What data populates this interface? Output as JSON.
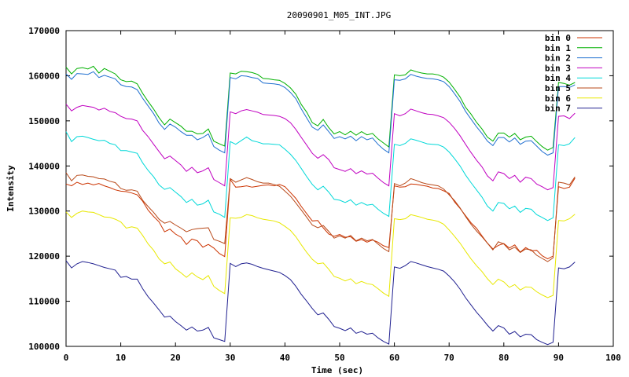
{
  "chart_data": {
    "type": "line",
    "title": "20090901_M05_INT.JPG",
    "xlabel": "Time (sec)",
    "ylabel": "Intensity",
    "xlim": [
      0,
      100
    ],
    "ylim": [
      100000,
      170000
    ],
    "xticks": [
      0,
      10,
      20,
      30,
      40,
      50,
      60,
      70,
      80,
      90,
      100
    ],
    "yticks": [
      100000,
      110000,
      120000,
      130000,
      140000,
      150000,
      160000,
      170000
    ],
    "grid": false,
    "legend_position": "top-right",
    "x": [
      0,
      1,
      2,
      3,
      4,
      5,
      6,
      7,
      8,
      9,
      10,
      11,
      12,
      13,
      14,
      15,
      16,
      17,
      18,
      19,
      20,
      21,
      22,
      23,
      24,
      25,
      26,
      27,
      28,
      29,
      30,
      31,
      32,
      33,
      34,
      35,
      36,
      37,
      38,
      39,
      40,
      41,
      42,
      43,
      44,
      45,
      46,
      47,
      48,
      49,
      50,
      51,
      52,
      53,
      54,
      55,
      56,
      57,
      58,
      59,
      60,
      61,
      62,
      63,
      64,
      65,
      66,
      67,
      68,
      69,
      70,
      71,
      72,
      73,
      74,
      75,
      76,
      77,
      78,
      79,
      80,
      81,
      82,
      83,
      84,
      85,
      86,
      87,
      88,
      89,
      90,
      91,
      92,
      93
    ],
    "series": [
      {
        "name": "bin 0",
        "color": "#cc3300",
        "values": [
          136000,
          135600,
          136400,
          135900,
          136200,
          135800,
          136100,
          135600,
          135200,
          134700,
          134400,
          134300,
          134000,
          133600,
          132200,
          130200,
          128800,
          127600,
          125400,
          126000,
          124900,
          124200,
          122600,
          123800,
          123400,
          122000,
          122600,
          121800,
          120600,
          119900,
          137000,
          135300,
          135400,
          135600,
          135300,
          135500,
          135700,
          135800,
          135600,
          135900,
          135400,
          134100,
          132800,
          131000,
          129400,
          127800,
          127900,
          126300,
          124900,
          124400,
          124800,
          124200,
          124300,
          123300,
          123700,
          123100,
          123600,
          123100,
          122300,
          121900,
          135600,
          135300,
          135400,
          136000,
          135900,
          135700,
          135500,
          135100,
          135000,
          134500,
          133900,
          132000,
          130600,
          129000,
          127400,
          126200,
          124500,
          122900,
          121600,
          122400,
          122800,
          121800,
          122500,
          120900,
          121900,
          121200,
          121300,
          120100,
          119400,
          120000,
          135400,
          135000,
          135300,
          137300
        ]
      },
      {
        "name": "bin 1",
        "color": "#00b000",
        "values": [
          161900,
          160400,
          161600,
          161800,
          161500,
          162100,
          160600,
          161600,
          161000,
          160400,
          159100,
          158700,
          158800,
          158200,
          156100,
          154300,
          152600,
          150700,
          149100,
          150400,
          149600,
          148800,
          147700,
          147700,
          147100,
          147200,
          148200,
          145500,
          144900,
          144400,
          160600,
          160400,
          161000,
          160900,
          160700,
          160300,
          159400,
          159300,
          159100,
          159000,
          158300,
          157300,
          155900,
          153600,
          151900,
          149600,
          148900,
          150300,
          148500,
          147100,
          147600,
          146900,
          147700,
          146800,
          147600,
          146900,
          147200,
          146000,
          145100,
          144200,
          160200,
          160000,
          160200,
          161300,
          160900,
          160600,
          160400,
          160400,
          160200,
          159700,
          158600,
          157000,
          155300,
          153000,
          151500,
          149700,
          148200,
          146400,
          145500,
          147300,
          147300,
          146400,
          147200,
          145800,
          146400,
          146600,
          145400,
          144300,
          143500,
          144100,
          158500,
          158300,
          157900,
          158500
        ]
      },
      {
        "name": "bin 2",
        "color": "#1f6fd0",
        "values": [
          160400,
          159200,
          160500,
          160400,
          160300,
          160900,
          159600,
          160100,
          159700,
          159300,
          158000,
          157600,
          157500,
          156900,
          155000,
          153300,
          151600,
          149500,
          148100,
          149300,
          148600,
          147600,
          146800,
          146800,
          145800,
          146300,
          147100,
          144300,
          143500,
          142900,
          159600,
          159300,
          160000,
          159900,
          159600,
          159400,
          158400,
          158300,
          158200,
          158000,
          157400,
          156300,
          154900,
          152600,
          150600,
          148600,
          147900,
          149100,
          147600,
          146100,
          146500,
          146000,
          146600,
          145600,
          146500,
          145800,
          146200,
          144800,
          143700,
          142900,
          159100,
          159000,
          159300,
          160300,
          159900,
          159600,
          159400,
          159300,
          159100,
          158700,
          157600,
          156000,
          154300,
          152100,
          150400,
          148700,
          147200,
          145500,
          144500,
          146300,
          146300,
          145300,
          146200,
          144800,
          145500,
          145600,
          144400,
          143200,
          142400,
          142900,
          157600,
          157600,
          157400,
          158000
        ]
      },
      {
        "name": "bin 3",
        "color": "#c000c0",
        "values": [
          153700,
          152200,
          153000,
          153400,
          153200,
          153000,
          152400,
          152800,
          152100,
          151800,
          151000,
          150500,
          150400,
          150000,
          147900,
          146500,
          144800,
          143200,
          141600,
          142200,
          141200,
          140200,
          138800,
          139700,
          138500,
          138900,
          139600,
          137000,
          136300,
          135600,
          152000,
          151600,
          152200,
          152500,
          152200,
          151900,
          151400,
          151300,
          151200,
          151000,
          150500,
          149600,
          148100,
          146300,
          144600,
          142800,
          141700,
          142500,
          141400,
          139600,
          139200,
          138800,
          139400,
          138300,
          138900,
          138200,
          138400,
          137300,
          136300,
          135600,
          151600,
          151100,
          151600,
          152600,
          152200,
          151800,
          151500,
          151400,
          151100,
          150700,
          149700,
          148300,
          146700,
          144800,
          143000,
          141300,
          139800,
          137800,
          136700,
          138700,
          138300,
          137200,
          137900,
          136400,
          137500,
          137200,
          136000,
          135400,
          134700,
          135200,
          151000,
          151100,
          150500,
          151700
        ]
      },
      {
        "name": "bin 4",
        "color": "#00d8d8",
        "values": [
          147600,
          145400,
          146500,
          146600,
          146300,
          145900,
          145600,
          145700,
          145000,
          144700,
          143400,
          143400,
          143100,
          142800,
          140700,
          139000,
          137600,
          135800,
          134800,
          135200,
          134200,
          133200,
          131900,
          132600,
          131300,
          131600,
          132400,
          129800,
          129300,
          128600,
          145400,
          144800,
          145600,
          146400,
          145600,
          145300,
          144900,
          144900,
          144800,
          144700,
          143700,
          142600,
          141200,
          139400,
          137600,
          135900,
          134700,
          135500,
          134200,
          132600,
          132400,
          131900,
          132500,
          131300,
          131900,
          131300,
          131500,
          130400,
          129500,
          128800,
          144800,
          144500,
          145000,
          146000,
          145700,
          145300,
          144900,
          144800,
          144700,
          144200,
          143100,
          141600,
          140000,
          138000,
          136300,
          134700,
          133100,
          131100,
          130000,
          131900,
          131700,
          130500,
          131100,
          129700,
          130600,
          130400,
          129200,
          128600,
          127900,
          128500,
          144700,
          144500,
          144900,
          146300
        ]
      },
      {
        "name": "bin 5",
        "color": "#b84818",
        "values": [
          138500,
          136700,
          137900,
          138000,
          137700,
          137600,
          137200,
          137100,
          136600,
          136300,
          135000,
          134600,
          134700,
          134400,
          132400,
          131000,
          129700,
          128200,
          127300,
          127700,
          126900,
          126200,
          125400,
          125900,
          126100,
          126200,
          126300,
          123700,
          123300,
          122800,
          137200,
          136400,
          136900,
          137400,
          137000,
          136500,
          136200,
          136200,
          135900,
          135500,
          134400,
          133300,
          131800,
          130200,
          128600,
          126900,
          126300,
          126800,
          125500,
          124000,
          124500,
          124000,
          124600,
          123400,
          124000,
          123400,
          123700,
          122700,
          121700,
          121000,
          136100,
          135600,
          136200,
          137200,
          136800,
          136300,
          136000,
          135800,
          135600,
          134900,
          133600,
          132300,
          130700,
          128800,
          127100,
          125600,
          124300,
          122900,
          121400,
          123200,
          122700,
          121400,
          122000,
          120800,
          121600,
          121400,
          120200,
          119500,
          118800,
          119600,
          136400,
          136200,
          135800,
          137600
        ]
      },
      {
        "name": "bin 6",
        "color": "#e8e800",
        "values": [
          129800,
          128600,
          129500,
          130000,
          129800,
          129700,
          129200,
          128700,
          128600,
          128200,
          127600,
          126200,
          126500,
          126200,
          124600,
          122700,
          121300,
          119400,
          118300,
          118700,
          117200,
          116300,
          115300,
          116300,
          115400,
          114800,
          115700,
          113300,
          112400,
          111700,
          128500,
          128400,
          128600,
          129200,
          129000,
          128500,
          128200,
          128000,
          127800,
          127400,
          126600,
          125700,
          124300,
          122500,
          120800,
          119300,
          118300,
          118500,
          117100,
          115500,
          115100,
          114500,
          115000,
          113900,
          114400,
          113900,
          113700,
          112800,
          111800,
          111100,
          128300,
          128100,
          128300,
          129200,
          128900,
          128600,
          128200,
          128000,
          127700,
          127100,
          125800,
          124400,
          122900,
          121100,
          119400,
          117900,
          116600,
          115000,
          113700,
          114900,
          114300,
          113100,
          113700,
          112500,
          113200,
          113100,
          112100,
          111400,
          110800,
          111300,
          127900,
          127800,
          128300,
          129300
        ]
      },
      {
        "name": "bin 7",
        "color": "#202090",
        "values": [
          119000,
          117400,
          118300,
          118800,
          118600,
          118300,
          117900,
          117500,
          117200,
          116900,
          115300,
          115500,
          114900,
          114900,
          112800,
          111000,
          109600,
          108100,
          106500,
          106700,
          105500,
          104600,
          103600,
          104300,
          103400,
          103600,
          104200,
          101900,
          101500,
          101100,
          118400,
          117700,
          118300,
          118500,
          118200,
          117700,
          117300,
          117000,
          116700,
          116400,
          115700,
          114800,
          113300,
          111500,
          110000,
          108400,
          107000,
          107400,
          106000,
          104400,
          104000,
          103500,
          104100,
          102900,
          103300,
          102700,
          102900,
          101900,
          101100,
          100500,
          117600,
          117300,
          117900,
          118800,
          118500,
          118100,
          117700,
          117400,
          117100,
          116700,
          115600,
          114300,
          112700,
          110800,
          109200,
          107600,
          106200,
          104700,
          103400,
          104600,
          104100,
          102700,
          103300,
          102100,
          102700,
          102600,
          101500,
          100900,
          100400,
          100900,
          117400,
          117200,
          117600,
          118700
        ]
      }
    ]
  }
}
